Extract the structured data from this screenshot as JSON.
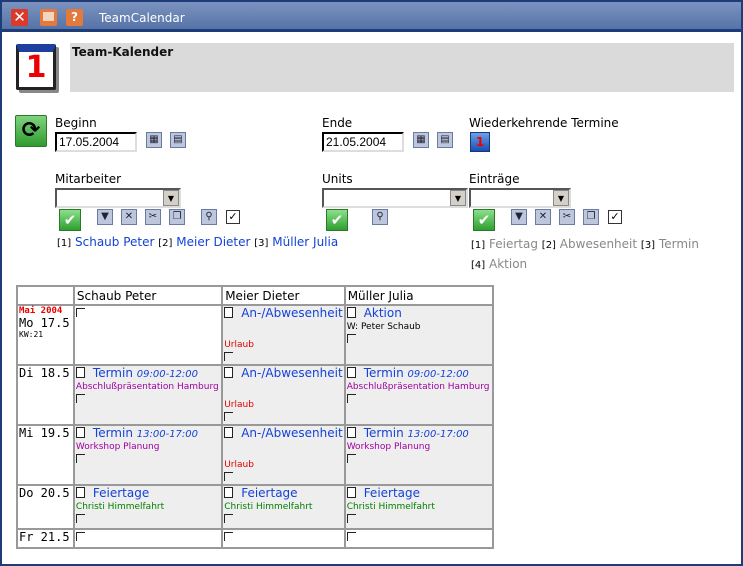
{
  "window": {
    "title": "TeamCalendar"
  },
  "header": {
    "title": "Team-Kalender",
    "icon_digit": "1"
  },
  "filters": {
    "begin": {
      "label": "Beginn",
      "value": "17.05.2004"
    },
    "end": {
      "label": "Ende",
      "value": "21.05.2004"
    },
    "recurring": {
      "label": "Wiederkehrende Termine",
      "icon_digit": "1"
    },
    "employees": {
      "label": "Mitarbeiter",
      "value": "",
      "selected": [
        {
          "num": "[1]",
          "name": "Schaub Peter"
        },
        {
          "num": "[2]",
          "name": "Meier Dieter"
        },
        {
          "num": "[3]",
          "name": "Müller Julia"
        }
      ]
    },
    "units": {
      "label": "Units",
      "value": ""
    },
    "entries": {
      "label": "Einträge",
      "value": "",
      "selected": [
        {
          "num": "[1]",
          "name": "Feiertag"
        },
        {
          "num": "[2]",
          "name": "Abwesenheit"
        },
        {
          "num": "[3]",
          "name": "Termin"
        },
        {
          "num": "[4]",
          "name": "Aktion"
        }
      ]
    }
  },
  "calendar": {
    "columns": [
      "Schaub Peter",
      "Meier Dieter",
      "Müller Julia"
    ],
    "month": "Mai 2004",
    "week": "KW:21",
    "rows": [
      {
        "day": "Mo 17.5",
        "cells": [
          null,
          {
            "type": "An-/Abwesenheit",
            "desc": "Urlaub",
            "color": "#e00000"
          },
          {
            "type": "Aktion",
            "desc": "W: Peter Schaub",
            "color": "#000000"
          }
        ]
      },
      {
        "day": "Di 18.5",
        "cells": [
          {
            "type": "Termin",
            "time": "09:00-12:00",
            "desc": "Abschlußpräsentation Hamburg",
            "color": "#a000a0"
          },
          {
            "type": "An-/Abwesenheit",
            "desc": "Urlaub",
            "color": "#e00000"
          },
          {
            "type": "Termin",
            "time": "09:00-12:00",
            "desc": "Abschlußpräsentation Hamburg",
            "color": "#a000a0"
          }
        ]
      },
      {
        "day": "Mi 19.5",
        "cells": [
          {
            "type": "Termin",
            "time": "13:00-17:00",
            "desc": "Workshop Planung",
            "color": "#a000a0"
          },
          {
            "type": "An-/Abwesenheit",
            "desc": "Urlaub",
            "color": "#e00000"
          },
          {
            "type": "Termin",
            "time": "13:00-17:00",
            "desc": "Workshop Planung",
            "color": "#a000a0"
          }
        ]
      },
      {
        "day": "Do 20.5",
        "cells": [
          {
            "type": "Feiertage",
            "desc": "Christi Himmelfahrt",
            "color": "#008000"
          },
          {
            "type": "Feiertage",
            "desc": "Christi Himmelfahrt",
            "color": "#008000"
          },
          {
            "type": "Feiertage",
            "desc": "Christi Himmelfahrt",
            "color": "#008000"
          }
        ]
      },
      {
        "day": "Fr 21.5",
        "cells": [
          null,
          null,
          null
        ]
      }
    ]
  }
}
